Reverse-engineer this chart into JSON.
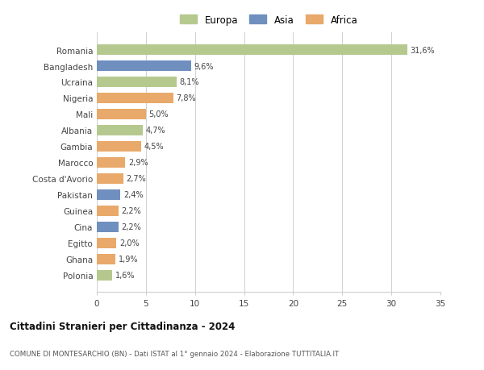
{
  "categories": [
    "Romania",
    "Bangladesh",
    "Ucraina",
    "Nigeria",
    "Mali",
    "Albania",
    "Gambia",
    "Marocco",
    "Costa d'Avorio",
    "Pakistan",
    "Guinea",
    "Cina",
    "Egitto",
    "Ghana",
    "Polonia"
  ],
  "values": [
    31.6,
    9.6,
    8.1,
    7.8,
    5.0,
    4.7,
    4.5,
    2.9,
    2.7,
    2.4,
    2.2,
    2.2,
    2.0,
    1.9,
    1.6
  ],
  "labels": [
    "31,6%",
    "9,6%",
    "8,1%",
    "7,8%",
    "5,0%",
    "4,7%",
    "4,5%",
    "2,9%",
    "2,7%",
    "2,4%",
    "2,2%",
    "2,2%",
    "2,0%",
    "1,9%",
    "1,6%"
  ],
  "colors": [
    "#b5c98e",
    "#6f8fbf",
    "#b5c98e",
    "#e8a96a",
    "#e8a96a",
    "#b5c98e",
    "#e8a96a",
    "#e8a96a",
    "#e8a96a",
    "#6f8fbf",
    "#e8a96a",
    "#6f8fbf",
    "#e8a96a",
    "#e8a96a",
    "#b5c98e"
  ],
  "legend_labels": [
    "Europa",
    "Asia",
    "Africa"
  ],
  "legend_colors": [
    "#b5c98e",
    "#6f8fbf",
    "#e8a96a"
  ],
  "title": "Cittadini Stranieri per Cittadinanza - 2024",
  "subtitle": "COMUNE DI MONTESARCHIO (BN) - Dati ISTAT al 1° gennaio 2024 - Elaborazione TUTTITALIA.IT",
  "xlim": [
    0,
    35
  ],
  "xticks": [
    0,
    5,
    10,
    15,
    20,
    25,
    30,
    35
  ],
  "background_color": "#ffffff",
  "grid_color": "#d0d0d0"
}
